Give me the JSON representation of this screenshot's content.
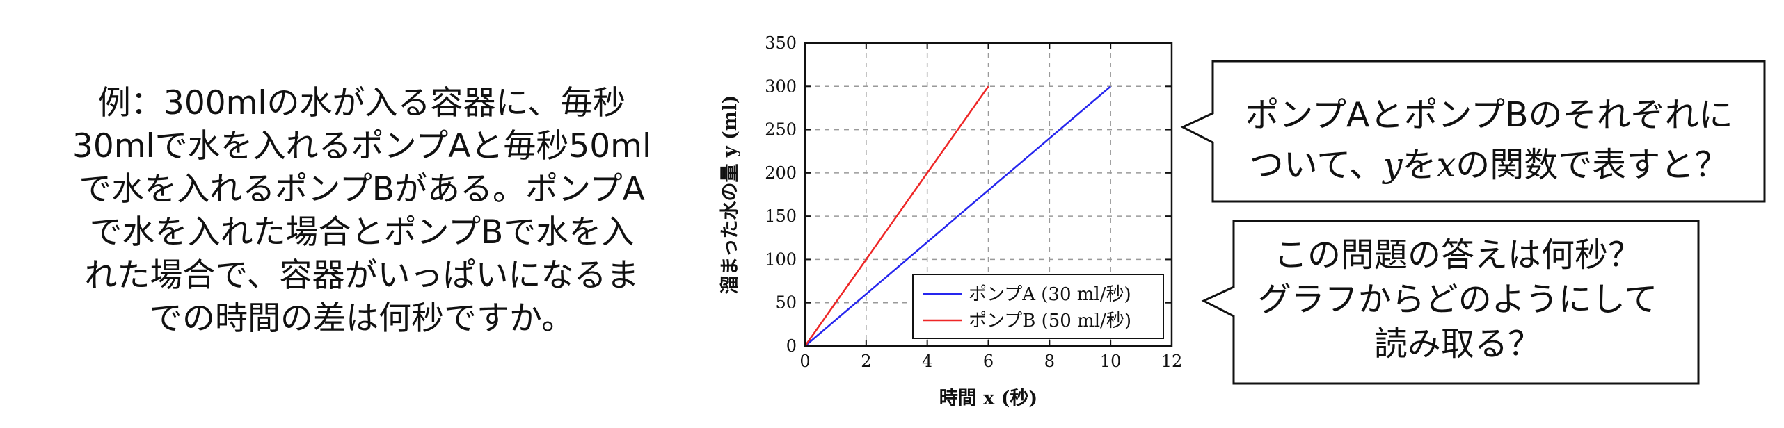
{
  "problem": {
    "lines": [
      "例：300mlの水が入る容器に、毎秒",
      "30mlで水を入れるポンプAと毎秒50ml",
      "で水を入れるポンプBがある。ポンプA",
      "で水を入れた場合とポンプBで水を入",
      "れた場合で、容器がいっぱいになるま",
      "での時間の差は何秒ですか。"
    ]
  },
  "bubble1": {
    "line1": "ポンプAとポンプBのそれぞれに",
    "line2_pre": "ついて、",
    "y_var": "y",
    "line2_mid": "を",
    "x_var": "x",
    "line2_post": "の関数で表すと？"
  },
  "bubble2": {
    "lines": [
      "この問題の答えは何秒？",
      "グラフからどのようにして",
      "読み取る？"
    ]
  },
  "chart_data": {
    "type": "line",
    "xlabel": "時間 x (秒)",
    "ylabel": "溜まった水の量 y (ml)",
    "xlim": [
      0,
      12
    ],
    "ylim": [
      0,
      350
    ],
    "xticks": [
      0,
      2,
      4,
      6,
      8,
      10,
      12
    ],
    "yticks": [
      0,
      50,
      100,
      150,
      200,
      250,
      300,
      350
    ],
    "grid": true,
    "legend_position": "bottom-right",
    "series": [
      {
        "name": "ポンプA (30 ml/秒)",
        "color": "#2626ee",
        "x": [
          0,
          10
        ],
        "y": [
          0,
          300
        ]
      },
      {
        "name": "ポンプB (50 ml/秒)",
        "color": "#ee2626",
        "x": [
          0,
          6
        ],
        "y": [
          0,
          300
        ]
      }
    ]
  }
}
